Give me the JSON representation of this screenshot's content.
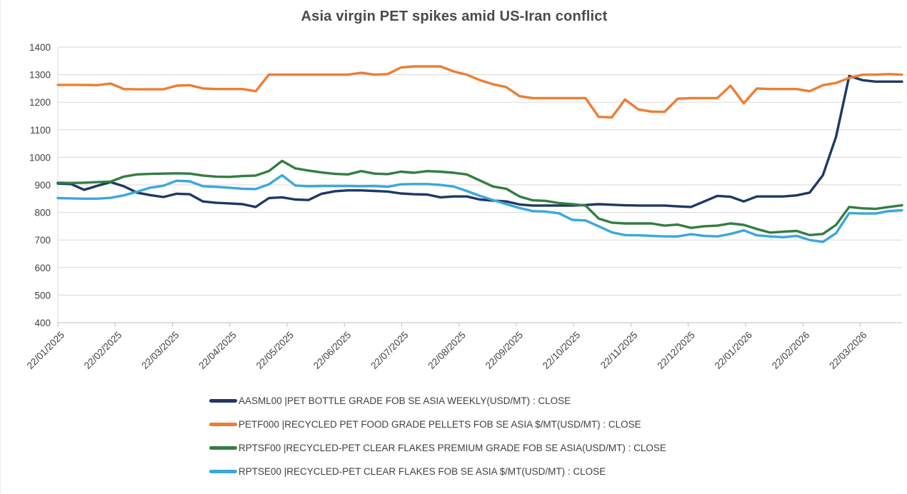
{
  "chart_data": {
    "type": "line",
    "title": "Asia virgin PET spikes amid US-Iran conflict",
    "legend_position": "bottom-left",
    "grid": "horizontal",
    "x_axis": {
      "tick_labels": [
        "22/01/2025",
        "22/02/2025",
        "22/03/2025",
        "22/04/2025",
        "22/05/2025",
        "22/06/2025",
        "22/07/2025",
        "22/08/2025",
        "22/09/2025",
        "22/10/2025",
        "22/11/2025",
        "22/12/2025",
        "22/01/2026",
        "22/02/2026",
        "22/03/2026"
      ],
      "label_rotation_deg": -45,
      "data_cadence": "weekly",
      "points_per_month": 4.345
    },
    "y_axis": {
      "min": 400,
      "max": 1400,
      "tick_interval": 100,
      "ticks": [
        400,
        500,
        600,
        700,
        800,
        900,
        1000,
        1100,
        1200,
        1300,
        1400
      ]
    },
    "series": [
      {
        "id": "AASML00",
        "label": "AASML00 |PET BOTTLE GRADE FOB SE ASIA WEEKLY(USD/MT) : CLOSE",
        "color": "#1F3864",
        "values": [
          905,
          903,
          882,
          897,
          910,
          895,
          872,
          863,
          856,
          868,
          866,
          840,
          835,
          833,
          830,
          820,
          852,
          855,
          847,
          845,
          868,
          877,
          880,
          880,
          878,
          876,
          869,
          866,
          865,
          855,
          858,
          858,
          847,
          843,
          840,
          829,
          825,
          825,
          825,
          825,
          827,
          830,
          828,
          826,
          825,
          825,
          825,
          822,
          820,
          840,
          860,
          857,
          840,
          858,
          858,
          858,
          862,
          872,
          935,
          1075,
          1295,
          1280,
          1275,
          1275,
          1275
        ]
      },
      {
        "id": "PETF000",
        "label": "PETF000 |RECYCLED PET FOOD GRADE PELLETS FOB SE ASIA $/MT(USD/MT) : CLOSE",
        "color": "#ED7D31",
        "values": [
          1263,
          1263,
          1263,
          1262,
          1268,
          1248,
          1247,
          1247,
          1247,
          1260,
          1262,
          1250,
          1248,
          1248,
          1248,
          1240,
          1300,
          1300,
          1300,
          1300,
          1300,
          1300,
          1300,
          1307,
          1300,
          1302,
          1326,
          1330,
          1330,
          1330,
          1312,
          1300,
          1280,
          1265,
          1255,
          1222,
          1215,
          1215,
          1215,
          1215,
          1215,
          1147,
          1145,
          1210,
          1174,
          1166,
          1165,
          1213,
          1215,
          1215,
          1215,
          1260,
          1196,
          1250,
          1248,
          1248,
          1248,
          1240,
          1262,
          1270,
          1288,
          1300,
          1300,
          1302,
          1300
        ]
      },
      {
        "id": "RPTSF00",
        "label": "RPTSF00 |RECYCLED-PET CLEAR FLAKES PREMIUM GRADE FOB SE ASIA(USD/MT) : CLOSE",
        "color": "#337E41",
        "values": [
          908,
          907,
          908,
          910,
          912,
          930,
          938,
          940,
          941,
          942,
          941,
          934,
          930,
          929,
          932,
          934,
          950,
          987,
          960,
          952,
          945,
          940,
          938,
          950,
          941,
          939,
          948,
          944,
          950,
          948,
          944,
          938,
          916,
          894,
          886,
          858,
          844,
          842,
          834,
          830,
          825,
          778,
          763,
          760,
          760,
          760,
          752,
          756,
          744,
          750,
          752,
          760,
          755,
          740,
          727,
          730,
          733,
          718,
          722,
          755,
          820,
          815,
          813,
          820,
          826
        ]
      },
      {
        "id": "RPTSE00",
        "label": "RPTSE00 |RECYCLED-PET CLEAR FLAKES FOB SE ASIA $/MT(USD/MT) : CLOSE",
        "color": "#3BA7DC",
        "values": [
          852,
          851,
          850,
          850,
          853,
          862,
          875,
          890,
          897,
          915,
          913,
          895,
          893,
          890,
          886,
          885,
          902,
          935,
          898,
          895,
          896,
          896,
          896,
          895,
          896,
          893,
          902,
          903,
          903,
          900,
          894,
          878,
          860,
          845,
          830,
          816,
          805,
          803,
          797,
          773,
          771,
          750,
          728,
          718,
          717,
          715,
          713,
          713,
          721,
          715,
          713,
          722,
          735,
          717,
          713,
          710,
          715,
          700,
          693,
          725,
          798,
          796,
          796,
          805,
          808
        ]
      }
    ]
  }
}
